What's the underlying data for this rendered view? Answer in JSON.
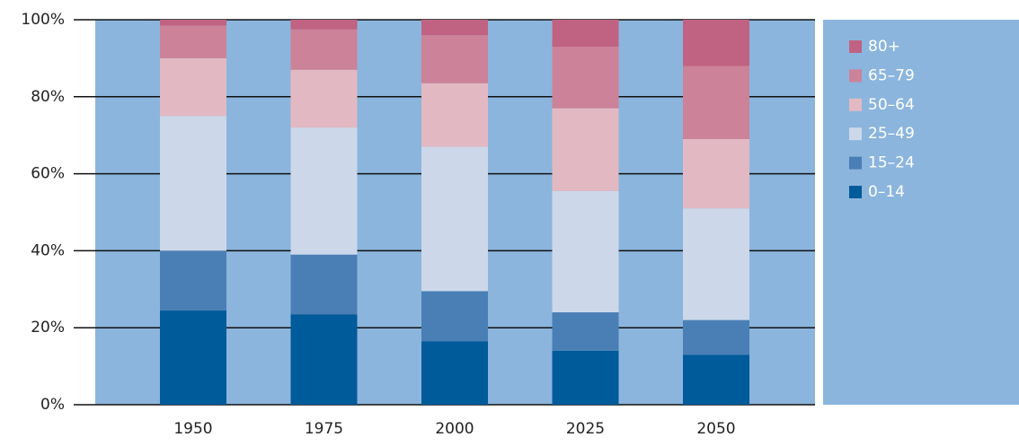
{
  "chart_data": {
    "type": "stacked_bar_100",
    "categories": [
      "1950",
      "1975",
      "2000",
      "2025",
      "2050"
    ],
    "series": [
      {
        "name": "0–14",
        "color": "#005b9a",
        "values": [
          24.5,
          23.5,
          16.5,
          14,
          13
        ]
      },
      {
        "name": "15–24",
        "color": "#4a7fb5",
        "values": [
          15.5,
          15.5,
          13,
          10,
          9
        ]
      },
      {
        "name": "25–49",
        "color": "#ccd8ea",
        "values": [
          35,
          33,
          37.5,
          31.5,
          29
        ]
      },
      {
        "name": "50–64",
        "color": "#e2b9c2",
        "values": [
          15,
          15,
          16.5,
          21.5,
          18
        ]
      },
      {
        "name": "65–79",
        "color": "#cc8298",
        "values": [
          8.5,
          10.5,
          12.5,
          16,
          19
        ]
      },
      {
        "name": "80+",
        "color": "#c06282",
        "values": [
          1.5,
          2.5,
          4,
          7,
          12
        ]
      }
    ],
    "ylim": [
      0,
      100
    ],
    "yticks": [
      {
        "value": 0,
        "label": "0%"
      },
      {
        "value": 20,
        "label": "20%"
      },
      {
        "value": 40,
        "label": "40%"
      },
      {
        "value": 60,
        "label": "60%"
      },
      {
        "value": 80,
        "label": "80%"
      },
      {
        "value": 100,
        "label": "100%"
      }
    ],
    "grid": true,
    "background": "#8bb5dd",
    "legend": "right"
  }
}
